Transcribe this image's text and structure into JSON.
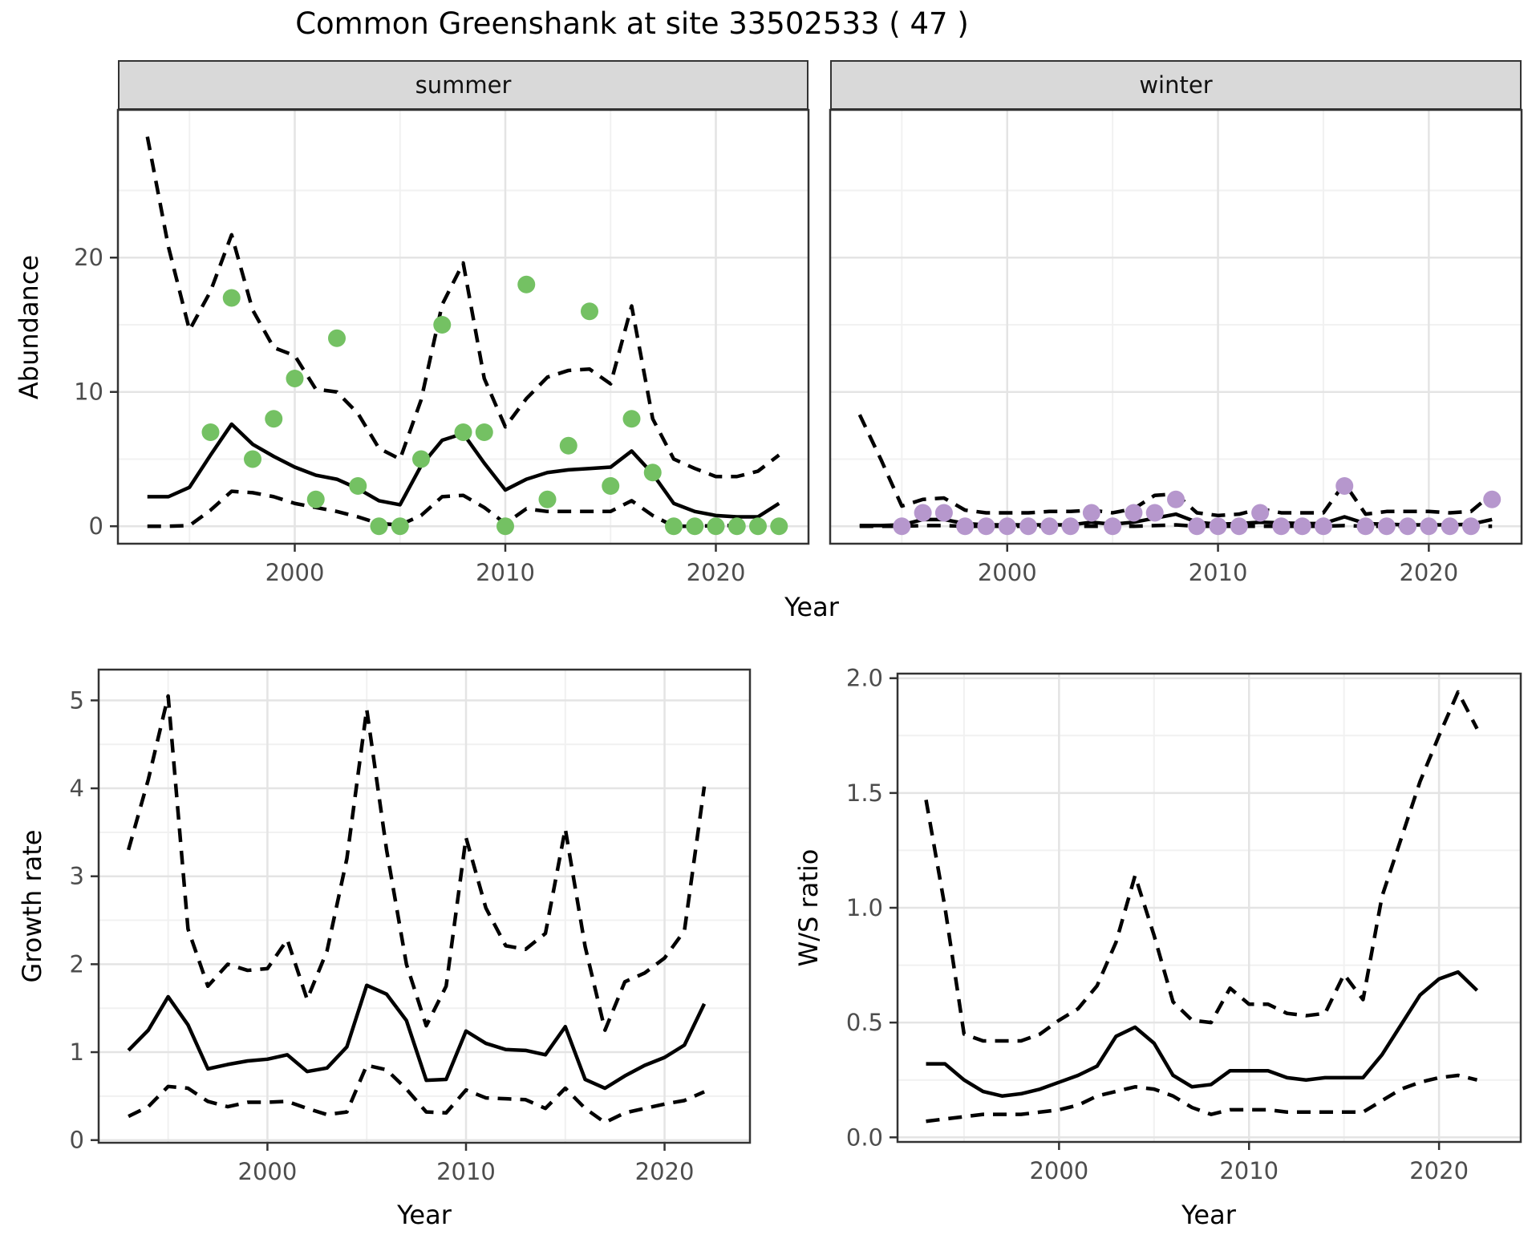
{
  "title": "Common Greenshank at site 33502533 ( 47 )",
  "colors": {
    "summer_points": "#74c163",
    "winter_points": "#b697cd",
    "line": "#000000",
    "strip_bg": "#d9d9d9",
    "tick_label": "#4d4d4d",
    "grid_major": "#e4e4e4",
    "grid_minor": "#f1f1f1",
    "panel_border": "#333333"
  },
  "axis_labels": {
    "abundance": "Abundance",
    "year_top": "Year",
    "growth_rate": "Growth rate",
    "ws_ratio": "W/S ratio",
    "year_growth": "Year",
    "year_ratio": "Year"
  },
  "chart_data": [
    {
      "id": "abundance_summer",
      "type": "line",
      "facet": "summer",
      "xlabel": "Year",
      "ylabel": "Abundance",
      "xlim": [
        1991.6,
        2024.4
      ],
      "ylim": [
        -1.3,
        31.0
      ],
      "x_ticks": [
        2000,
        2010,
        2020
      ],
      "x_tick_labels": [
        "2000",
        "2010",
        "2020"
      ],
      "x_minor": [
        1995,
        2005,
        2015
      ],
      "y_ticks": [
        0,
        10,
        20
      ],
      "y_tick_labels": [
        "0",
        "10",
        "20"
      ],
      "y_minor": [
        5,
        15,
        25
      ],
      "x": [
        1993,
        1994,
        1995,
        1996,
        1997,
        1998,
        1999,
        2000,
        2001,
        2002,
        2003,
        2004,
        2005,
        2006,
        2007,
        2008,
        2009,
        2010,
        2011,
        2012,
        2013,
        2014,
        2015,
        2016,
        2017,
        2018,
        2019,
        2020,
        2021,
        2022,
        2023
      ],
      "series": [
        {
          "name": "median",
          "style": "solid",
          "values": [
            2.2,
            2.2,
            2.9,
            5.3,
            7.6,
            6.1,
            5.2,
            4.4,
            3.8,
            3.5,
            2.8,
            1.9,
            1.6,
            4.5,
            6.4,
            6.9,
            4.7,
            2.7,
            3.5,
            4.0,
            4.2,
            4.3,
            4.4,
            5.6,
            3.9,
            1.7,
            1.1,
            0.8,
            0.7,
            0.7,
            1.7
          ]
        },
        {
          "name": "upper_95ci",
          "style": "dashed",
          "values": [
            29.0,
            20.8,
            14.6,
            17.5,
            21.7,
            16.1,
            13.3,
            12.7,
            10.2,
            10.0,
            8.4,
            5.8,
            5.0,
            9.4,
            16.5,
            19.6,
            11.0,
            7.4,
            9.5,
            11.1,
            11.6,
            11.7,
            10.6,
            16.4,
            8.0,
            5.0,
            4.3,
            3.7,
            3.7,
            4.1,
            5.3
          ]
        },
        {
          "name": "lower_95ci",
          "style": "dashed",
          "values": [
            0,
            0,
            0.05,
            1.2,
            2.6,
            2.5,
            2.2,
            1.7,
            1.4,
            1.1,
            0.7,
            0.2,
            0.1,
            0.8,
            2.2,
            2.3,
            1.4,
            0.2,
            1.3,
            1.1,
            1.1,
            1.1,
            1.1,
            1.9,
            0.8,
            0,
            0,
            0.05,
            0.05,
            0.05,
            0.3
          ]
        }
      ],
      "points": {
        "color_key": "summer_points",
        "x": [
          1996,
          1997,
          1998,
          1999,
          2000,
          2001,
          2002,
          2003,
          2004,
          2005,
          2006,
          2007,
          2008,
          2009,
          2010,
          2011,
          2012,
          2013,
          2014,
          2015,
          2016,
          2017,
          2018,
          2019,
          2020,
          2021,
          2022,
          2023
        ],
        "y": [
          7,
          17,
          5,
          8,
          11,
          2,
          14,
          3,
          0,
          0,
          5,
          15,
          7,
          7,
          0,
          18,
          2,
          6,
          16,
          3,
          8,
          4,
          0,
          0,
          0,
          0,
          0,
          0
        ]
      }
    },
    {
      "id": "abundance_winter",
      "type": "line",
      "facet": "winter",
      "xlabel": "Year",
      "ylabel": "Abundance",
      "xlim": [
        1991.6,
        2024.4
      ],
      "ylim": [
        -1.3,
        31.0
      ],
      "x_ticks": [
        2000,
        2010,
        2020
      ],
      "x_tick_labels": [
        "2000",
        "2010",
        "2020"
      ],
      "x_minor": [
        1995,
        2005,
        2015
      ],
      "y_ticks": [
        0,
        10,
        20
      ],
      "y_tick_labels": [
        "0",
        "10",
        "20"
      ],
      "y_minor": [
        5,
        15,
        25
      ],
      "x": [
        1993,
        1994,
        1995,
        1996,
        1997,
        1998,
        1999,
        2000,
        2001,
        2002,
        2003,
        2004,
        2005,
        2006,
        2007,
        2008,
        2009,
        2010,
        2011,
        2012,
        2013,
        2014,
        2015,
        2016,
        2017,
        2018,
        2019,
        2020,
        2021,
        2022,
        2023
      ],
      "series": [
        {
          "name": "median",
          "style": "solid",
          "values": [
            0.05,
            0.05,
            0.1,
            0.5,
            0.5,
            0.2,
            0.1,
            0.1,
            0.1,
            0.1,
            0.1,
            0.3,
            0.15,
            0.3,
            0.6,
            0.9,
            0.3,
            0.15,
            0.2,
            0.3,
            0.25,
            0.2,
            0.2,
            0.7,
            0.2,
            0.15,
            0.1,
            0.1,
            0.1,
            0.15,
            0.5
          ]
        },
        {
          "name": "upper_95ci",
          "style": "dashed",
          "values": [
            8.3,
            5.0,
            1.5,
            2.0,
            2.1,
            1.2,
            1.0,
            1.0,
            1.0,
            1.1,
            1.1,
            1.2,
            1.0,
            1.3,
            2.3,
            2.4,
            1.0,
            0.8,
            0.9,
            1.3,
            1.0,
            1.0,
            1.0,
            3.2,
            0.9,
            1.1,
            1.1,
            1.1,
            1.0,
            1.1,
            2.4
          ]
        },
        {
          "name": "lower_95ci",
          "style": "dashed",
          "values": [
            0,
            0,
            0,
            0.05,
            0.05,
            0,
            0,
            0,
            0,
            0,
            0,
            0,
            0,
            0,
            0.05,
            0.1,
            0,
            0,
            0,
            0,
            0,
            0,
            0,
            0.05,
            0,
            0,
            0,
            0,
            0,
            0,
            0
          ]
        }
      ],
      "points": {
        "color_key": "winter_points",
        "x": [
          1995,
          1996,
          1997,
          1998,
          1999,
          2000,
          2001,
          2002,
          2003,
          2004,
          2005,
          2006,
          2007,
          2008,
          2009,
          2010,
          2011,
          2012,
          2013,
          2014,
          2015,
          2016,
          2017,
          2018,
          2019,
          2020,
          2021,
          2022,
          2023
        ],
        "y": [
          0,
          1,
          1,
          0,
          0,
          0,
          0,
          0,
          0,
          1,
          0,
          1,
          1,
          2,
          0,
          0,
          0,
          1,
          0,
          0,
          0,
          3,
          0,
          0,
          0,
          0,
          0,
          0,
          2
        ]
      }
    },
    {
      "id": "growth_rate",
      "type": "line",
      "facet": "",
      "xlabel": "Year",
      "ylabel": "Growth rate",
      "xlim": [
        1991.5,
        2024.3
      ],
      "ylim": [
        -0.03,
        5.35
      ],
      "x_ticks": [
        2000,
        2010,
        2020
      ],
      "x_tick_labels": [
        "2000",
        "2010",
        "2020"
      ],
      "x_minor": [
        1995,
        2005,
        2015
      ],
      "y_ticks": [
        0,
        1,
        2,
        3,
        4,
        5
      ],
      "y_tick_labels": [
        "0",
        "1",
        "2",
        "3",
        "4",
        "5"
      ],
      "y_minor": [
        0.5,
        1.5,
        2.5,
        3.5,
        4.5
      ],
      "x": [
        1993,
        1994,
        1995,
        1996,
        1997,
        1998,
        1999,
        2000,
        2001,
        2002,
        2003,
        2004,
        2005,
        2006,
        2007,
        2008,
        2009,
        2010,
        2011,
        2012,
        2013,
        2014,
        2015,
        2016,
        2017,
        2018,
        2019,
        2020,
        2021,
        2022
      ],
      "series": [
        {
          "name": "median",
          "style": "solid",
          "values": [
            1.02,
            1.25,
            1.63,
            1.31,
            0.81,
            0.86,
            0.9,
            0.92,
            0.97,
            0.78,
            0.82,
            1.06,
            1.76,
            1.66,
            1.36,
            0.68,
            0.69,
            1.24,
            1.1,
            1.03,
            1.02,
            0.97,
            1.29,
            0.69,
            0.59,
            0.73,
            0.85,
            0.94,
            1.08,
            1.55
          ]
        },
        {
          "name": "upper_95ci",
          "style": "dashed",
          "values": [
            3.3,
            4.1,
            5.05,
            2.4,
            1.75,
            2.0,
            1.93,
            1.95,
            2.28,
            1.6,
            2.15,
            3.2,
            4.9,
            3.3,
            2.0,
            1.3,
            1.75,
            3.44,
            2.64,
            2.21,
            2.17,
            2.35,
            3.54,
            2.2,
            1.25,
            1.8,
            1.9,
            2.07,
            2.38,
            4.02
          ]
        },
        {
          "name": "lower_95ci",
          "style": "dashed",
          "values": [
            0.27,
            0.38,
            0.61,
            0.59,
            0.44,
            0.38,
            0.43,
            0.43,
            0.44,
            0.36,
            0.29,
            0.32,
            0.85,
            0.8,
            0.58,
            0.32,
            0.31,
            0.57,
            0.48,
            0.47,
            0.46,
            0.36,
            0.59,
            0.36,
            0.2,
            0.31,
            0.36,
            0.41,
            0.45,
            0.55
          ]
        }
      ],
      "points": null
    },
    {
      "id": "ws_ratio",
      "type": "line",
      "facet": "",
      "xlabel": "Year",
      "ylabel": "W/S ratio",
      "xlim": [
        1991.5,
        2024.3
      ],
      "ylim": [
        -0.02,
        2.02
      ],
      "x_ticks": [
        2000,
        2010,
        2020
      ],
      "x_tick_labels": [
        "2000",
        "2010",
        "2020"
      ],
      "x_minor": [
        1995,
        2005,
        2015
      ],
      "y_ticks": [
        0,
        0.5,
        1.0,
        1.5,
        2.0
      ],
      "y_tick_labels": [
        "0.0",
        "0.5",
        "1.0",
        "1.5",
        "2.0"
      ],
      "y_minor": [
        0.25,
        0.75,
        1.25,
        1.75
      ],
      "x": [
        1993,
        1994,
        1995,
        1996,
        1997,
        1998,
        1999,
        2000,
        2001,
        2002,
        2003,
        2004,
        2005,
        2006,
        2007,
        2008,
        2009,
        2010,
        2011,
        2012,
        2013,
        2014,
        2015,
        2016,
        2017,
        2018,
        2019,
        2020,
        2021,
        2022
      ],
      "series": [
        {
          "name": "median",
          "style": "solid",
          "values": [
            0.32,
            0.32,
            0.25,
            0.2,
            0.18,
            0.19,
            0.21,
            0.24,
            0.27,
            0.31,
            0.44,
            0.48,
            0.41,
            0.27,
            0.22,
            0.23,
            0.29,
            0.29,
            0.29,
            0.26,
            0.25,
            0.26,
            0.26,
            0.26,
            0.36,
            0.49,
            0.62,
            0.69,
            0.72,
            0.64
          ]
        },
        {
          "name": "upper_95ci",
          "style": "dashed",
          "values": [
            1.47,
            1.0,
            0.45,
            0.42,
            0.42,
            0.42,
            0.45,
            0.51,
            0.56,
            0.66,
            0.85,
            1.14,
            0.88,
            0.59,
            0.51,
            0.5,
            0.65,
            0.58,
            0.58,
            0.54,
            0.53,
            0.54,
            0.71,
            0.6,
            1.05,
            1.3,
            1.55,
            1.75,
            1.94,
            1.78
          ]
        },
        {
          "name": "lower_95ci",
          "style": "dashed",
          "values": [
            0.07,
            0.08,
            0.09,
            0.1,
            0.1,
            0.1,
            0.11,
            0.12,
            0.14,
            0.18,
            0.2,
            0.22,
            0.21,
            0.18,
            0.13,
            0.1,
            0.12,
            0.12,
            0.12,
            0.11,
            0.11,
            0.11,
            0.11,
            0.11,
            0.16,
            0.21,
            0.24,
            0.26,
            0.27,
            0.25
          ]
        }
      ],
      "points": null
    }
  ]
}
